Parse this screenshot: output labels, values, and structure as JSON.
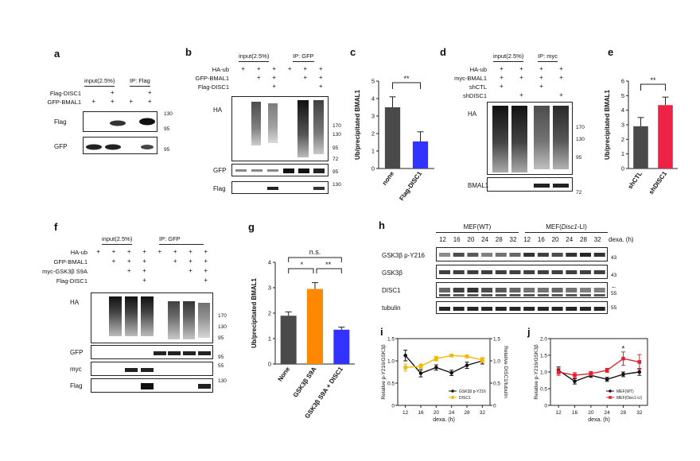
{
  "panels": {
    "a": {
      "letter": "a",
      "header_input": "input(2.5%)",
      "header_ip": "IP: Flag",
      "rows": [
        "Flag-DISC1",
        "GFP-BMAL1"
      ],
      "signs": [
        [
          "",
          "+",
          "",
          "+"
        ],
        [
          "+",
          "+",
          "+",
          "+"
        ]
      ],
      "blots": [
        "Flag",
        "GFP"
      ],
      "mw": [
        "130",
        "95",
        "95"
      ]
    },
    "b": {
      "letter": "b",
      "header_input": "input(2.5%)",
      "header_ip": "IP: GFP",
      "rows": [
        "HA-ub",
        "GFP-BMAL1",
        "Flag-DISC1"
      ],
      "signs": [
        [
          "+",
          "+",
          "+",
          "+",
          "+",
          "+"
        ],
        [
          "",
          "+",
          "+",
          "",
          "+",
          "+"
        ],
        [
          "",
          "",
          "+",
          "",
          "",
          "+"
        ]
      ],
      "blots": [
        "HA",
        "GFP",
        "Flag"
      ],
      "mw": [
        "170",
        "130",
        "95",
        "72",
        "95",
        "130"
      ]
    },
    "c": {
      "letter": "c",
      "sig": "**"
    },
    "d": {
      "letter": "d",
      "header_input": "input(2.5%)",
      "header_ip": "IP: myc",
      "rows": [
        "HA-ub",
        "myc-BMAL1",
        "shCTL",
        "shDISC1"
      ],
      "signs": [
        [
          "+",
          "+",
          "+",
          "+"
        ],
        [
          "+",
          "+",
          "+",
          "+"
        ],
        [
          "+",
          "",
          "+",
          ""
        ],
        [
          "",
          "+",
          "",
          "+"
        ]
      ],
      "blots": [
        "HA",
        "BMAL1"
      ],
      "mw": [
        "170",
        "130",
        "95",
        "72"
      ]
    },
    "e": {
      "letter": "e",
      "sig": "**"
    },
    "f": {
      "letter": "f",
      "header_input": "input(2.5%)",
      "header_ip": "IP: GFP",
      "rows": [
        "HA-ub",
        "GFP-BMAL1",
        "myc-GSK3β S9A",
        "Flag-DISC1"
      ],
      "signs": [
        [
          "+",
          "+",
          "+",
          "+",
          "+",
          "+",
          "+",
          "+"
        ],
        [
          "",
          "+",
          "+",
          "+",
          "",
          "+",
          "+",
          "+"
        ],
        [
          "",
          "",
          "+",
          "+",
          "",
          "",
          "+",
          "+"
        ],
        [
          "",
          "",
          "",
          "+",
          "",
          "",
          "",
          "+"
        ]
      ],
      "blots": [
        "HA",
        "GFP",
        "myc",
        "Flag"
      ],
      "mw": [
        "170",
        "130",
        "95",
        "95",
        "55",
        "130"
      ]
    },
    "g": {
      "letter": "g",
      "sig_top": "n.s.",
      "sig_a": "*",
      "sig_b": "**"
    },
    "h": {
      "letter": "h",
      "group_wt": "MEF(WT)",
      "group_ll_pre": "MEF(",
      "group_ll_it": "Disc1",
      "group_ll_post": "-LI)",
      "times": [
        "12",
        "16",
        "20",
        "24",
        "28",
        "32",
        "12",
        "16",
        "20",
        "24",
        "28",
        "32"
      ],
      "dexa_label": "dexa. (h)",
      "blots": [
        "GSK3β p-Y216",
        "GSK3β",
        "DISC1",
        "tubulin"
      ],
      "mw": [
        "43",
        "43",
        "55",
        "55"
      ],
      "arrow": "←"
    },
    "i": {
      "letter": "i"
    },
    "j": {
      "letter": "j"
    }
  },
  "chart_data": [
    {
      "type": "bar",
      "panel": "c",
      "categories": [
        "none",
        "Flag-DISC1"
      ],
      "values": [
        3.5,
        1.55
      ],
      "errors": [
        0.6,
        0.55
      ],
      "colors": [
        "#4a4a4a",
        "#3333ff"
      ],
      "ylabel": "Ub/precipitated BMAL1",
      "ylim": [
        0,
        5
      ],
      "yticks": [
        "0",
        "1",
        "2",
        "3",
        "4",
        "5"
      ]
    },
    {
      "type": "bar",
      "panel": "e",
      "categories": [
        "shCTL",
        "shDISC1"
      ],
      "values": [
        2.9,
        4.35
      ],
      "errors": [
        0.6,
        0.55
      ],
      "colors": [
        "#4a4a4a",
        "#ee2244"
      ],
      "ylabel": "Ub/precipitated BMAL1",
      "ylim": [
        0,
        6
      ],
      "yticks": [
        "0",
        "1",
        "2",
        "3",
        "4",
        "5",
        "6"
      ]
    },
    {
      "type": "bar",
      "panel": "g",
      "categories": [
        "None",
        "GSK3β S9A",
        "GSK3β S9A + DISC1"
      ],
      "values": [
        1.9,
        2.95,
        1.35
      ],
      "errors": [
        0.15,
        0.25,
        0.1
      ],
      "colors": [
        "#4a4a4a",
        "#ff8800",
        "#3333ff"
      ],
      "ylabel": "Ub/precipitated BMAL1",
      "ylim": [
        0,
        4
      ],
      "yticks": [
        "0",
        "1",
        "2",
        "3",
        "4"
      ]
    },
    {
      "type": "line",
      "panel": "i",
      "x": [
        12,
        16,
        20,
        24,
        28,
        32
      ],
      "xticks": [
        "12",
        "16",
        "20",
        "24",
        "28",
        "32"
      ],
      "xlabel": "dexa. (h)",
      "ylabel": "Relative p-Y216/GSK3β",
      "ylabel_right": "Relative DISC1/tubulin",
      "ylim": [
        0,
        1.5
      ],
      "yticks": [
        "0",
        "0.5",
        "1.0",
        "1.5"
      ],
      "series": [
        {
          "name": "GSK3β p-Y216",
          "values": [
            1.12,
            0.72,
            0.85,
            0.73,
            0.9,
            1.0
          ],
          "errors": [
            0.12,
            0.08,
            0.06,
            0.06,
            0.07,
            0.07
          ],
          "color": "#111111"
        },
        {
          "name": "DISC1",
          "values": [
            0.85,
            0.88,
            1.05,
            1.12,
            1.1,
            1.02
          ],
          "errors": [
            0.08,
            0.05,
            0.05,
            0.03,
            0.03,
            0.05
          ],
          "color": "#f5b800"
        }
      ]
    },
    {
      "type": "line",
      "panel": "j",
      "x": [
        12,
        16,
        20,
        24,
        28,
        32
      ],
      "xticks": [
        "12",
        "16",
        "20",
        "24",
        "28",
        "32"
      ],
      "xlabel": "dexa. (h)",
      "ylabel": "Relative p-Y216/GSK3β",
      "ylim": [
        0,
        2
      ],
      "yticks": [
        "0",
        "0.5",
        "1.0",
        "1.5",
        "2.0"
      ],
      "annotation": "*",
      "series": [
        {
          "name": "MEF(WT)",
          "values": [
            1.05,
            0.72,
            0.9,
            0.78,
            0.93,
            1.0
          ],
          "errors": [
            0.1,
            0.08,
            0.06,
            0.06,
            0.07,
            0.1
          ],
          "color": "#111111"
        },
        {
          "name": "MEF(Disc1-LI)",
          "values": [
            1.0,
            0.9,
            0.95,
            1.05,
            1.4,
            1.3
          ],
          "errors": [
            0.1,
            0.08,
            0.06,
            0.06,
            0.2,
            0.22
          ],
          "color": "#e0202a"
        }
      ]
    }
  ]
}
